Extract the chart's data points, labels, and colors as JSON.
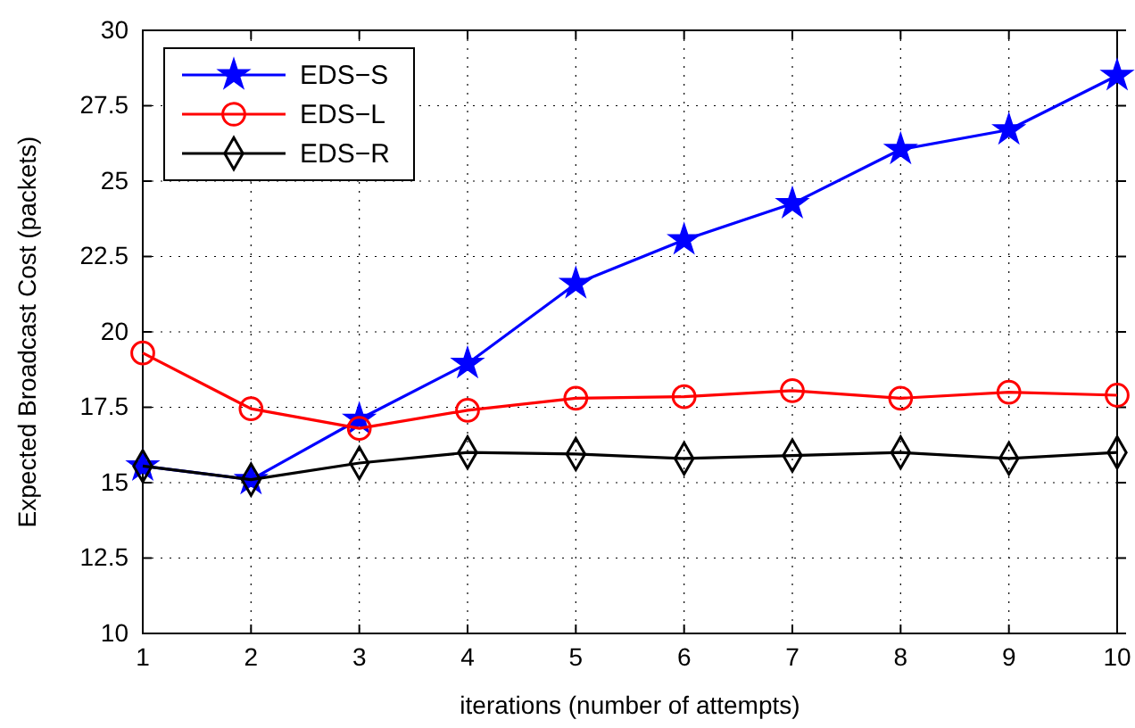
{
  "chart_data": {
    "type": "line",
    "xlabel": "iterations (number of attempts)",
    "ylabel": "Expected Broadcast Cost (packets)",
    "x": [
      1,
      2,
      3,
      4,
      5,
      6,
      7,
      8,
      9,
      10
    ],
    "series": [
      {
        "name": "EDS−S",
        "color": "#0000ff",
        "marker": "star",
        "values": [
          15.55,
          15.1,
          17.1,
          18.95,
          21.6,
          23.05,
          24.25,
          26.05,
          26.7,
          28.5
        ]
      },
      {
        "name": "EDS−L",
        "color": "#ff0000",
        "marker": "circle",
        "values": [
          19.3,
          17.45,
          16.8,
          17.4,
          17.8,
          17.85,
          18.05,
          17.8,
          18.0,
          17.9
        ]
      },
      {
        "name": "EDS−R",
        "color": "#000000",
        "marker": "diamond",
        "values": [
          15.55,
          15.1,
          15.65,
          16.0,
          15.95,
          15.8,
          15.9,
          16.0,
          15.8,
          16.0
        ]
      }
    ],
    "xlim": [
      1,
      10
    ],
    "xticks": [
      1,
      2,
      3,
      4,
      5,
      6,
      7,
      8,
      9,
      10
    ],
    "ylim": [
      10,
      30
    ],
    "yticks": [
      10,
      12.5,
      15,
      17.5,
      20,
      22.5,
      25,
      27.5,
      30
    ],
    "grid": true,
    "legend": "top left",
    "line_style": "solid"
  }
}
